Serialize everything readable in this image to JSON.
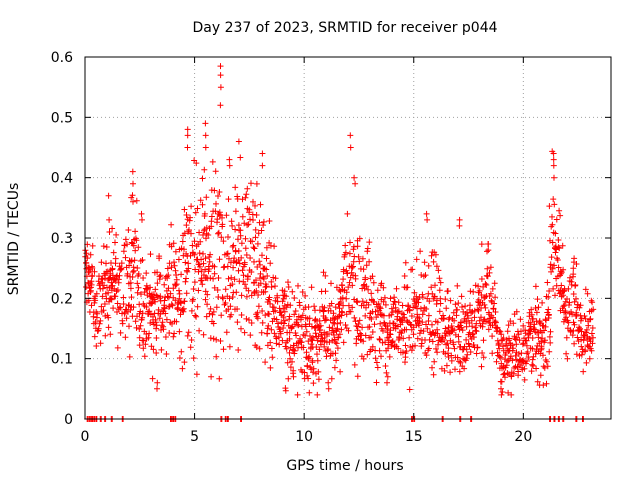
{
  "chart_data": {
    "type": "scatter",
    "title": "Day 237 of 2023, SRMTID for receiver p044",
    "xlabel": "GPS time / hours",
    "ylabel": "SRMTID / TECUs",
    "xlim": [
      0,
      24
    ],
    "ylim": [
      0,
      0.6
    ],
    "xticks": [
      0,
      5,
      10,
      15,
      20
    ],
    "xtick_labels": [
      "0",
      "5",
      "10",
      "15",
      "20"
    ],
    "yticks": [
      0,
      0.1,
      0.2,
      0.3,
      0.4,
      0.5,
      0.6
    ],
    "ytick_labels": [
      "0",
      "0.1",
      "0.2",
      "0.3",
      "0.4",
      "0.5",
      "0.6"
    ],
    "grid": true,
    "marker": "plus",
    "color": "#ff0000",
    "zero_points_x": [
      0.1,
      0.2,
      0.3,
      0.4,
      0.5,
      0.7,
      0.9,
      1.2,
      1.7,
      3.9,
      4.0,
      4.1,
      6.2,
      6.4,
      6.5,
      7.1,
      14.9,
      15.0,
      16.3,
      17.1,
      17.6,
      21.2,
      21.4,
      21.6,
      21.8,
      22.4,
      22.7
    ],
    "curve": {
      "name": "SRMTID",
      "x": [
        0.0,
        0.3,
        0.5,
        0.8,
        1.0,
        1.3,
        1.6,
        2.0,
        2.3,
        2.6,
        3.0,
        3.3,
        3.6,
        4.0,
        4.3,
        4.7,
        5.0,
        5.4,
        5.7,
        6.0,
        6.3,
        6.6,
        7.0,
        7.3,
        7.6,
        8.0,
        8.3,
        8.7,
        9.0,
        9.5,
        10.0,
        10.5,
        11.0,
        11.5,
        12.0,
        12.5,
        13.0,
        13.5,
        14.0,
        14.5,
        15.0,
        15.5,
        16.0,
        16.5,
        17.0,
        17.5,
        18.0,
        18.5,
        19.0,
        19.5,
        20.0,
        20.3,
        20.6,
        21.0,
        21.3,
        21.6,
        22.0,
        22.3,
        22.6,
        23.0
      ],
      "y": [
        0.26,
        0.22,
        0.17,
        0.2,
        0.22,
        0.24,
        0.2,
        0.21,
        0.26,
        0.19,
        0.17,
        0.19,
        0.2,
        0.22,
        0.19,
        0.27,
        0.25,
        0.26,
        0.22,
        0.3,
        0.24,
        0.22,
        0.28,
        0.26,
        0.29,
        0.25,
        0.22,
        0.18,
        0.15,
        0.14,
        0.15,
        0.13,
        0.15,
        0.13,
        0.24,
        0.2,
        0.19,
        0.16,
        0.14,
        0.16,
        0.15,
        0.19,
        0.17,
        0.14,
        0.15,
        0.13,
        0.17,
        0.2,
        0.1,
        0.11,
        0.12,
        0.15,
        0.14,
        0.11,
        0.3,
        0.25,
        0.17,
        0.18,
        0.16,
        0.15
      ],
      "spread": [
        0.05,
        0.05,
        0.04,
        0.06,
        0.06,
        0.07,
        0.07,
        0.08,
        0.1,
        0.07,
        0.06,
        0.06,
        0.06,
        0.07,
        0.07,
        0.11,
        0.11,
        0.12,
        0.1,
        0.12,
        0.11,
        0.09,
        0.11,
        0.1,
        0.09,
        0.1,
        0.09,
        0.07,
        0.06,
        0.06,
        0.06,
        0.06,
        0.06,
        0.06,
        0.09,
        0.08,
        0.08,
        0.06,
        0.05,
        0.06,
        0.06,
        0.07,
        0.07,
        0.05,
        0.06,
        0.05,
        0.07,
        0.07,
        0.04,
        0.04,
        0.05,
        0.05,
        0.05,
        0.05,
        0.1,
        0.08,
        0.06,
        0.06,
        0.05,
        0.05
      ],
      "spikes": [
        {
          "x": 1.1,
          "ys": [
            0.37,
            0.33,
            0.31
          ]
        },
        {
          "x": 2.2,
          "ys": [
            0.41,
            0.39,
            0.36
          ]
        },
        {
          "x": 2.6,
          "ys": [
            0.34,
            0.33
          ]
        },
        {
          "x": 3.3,
          "ys": [
            0.05,
            0.06
          ]
        },
        {
          "x": 4.7,
          "ys": [
            0.48,
            0.47,
            0.45
          ]
        },
        {
          "x": 5.5,
          "ys": [
            0.49,
            0.47,
            0.45
          ]
        },
        {
          "x": 6.2,
          "ys": [
            0.585,
            0.57,
            0.55,
            0.52
          ]
        },
        {
          "x": 6.6,
          "ys": [
            0.43,
            0.42
          ]
        },
        {
          "x": 7.0,
          "ys": [
            0.46
          ]
        },
        {
          "x": 8.1,
          "ys": [
            0.44,
            0.42
          ]
        },
        {
          "x": 9.5,
          "ys": [
            0.08,
            0.07
          ]
        },
        {
          "x": 11.1,
          "ys": [
            0.05,
            0.06
          ]
        },
        {
          "x": 12.1,
          "ys": [
            0.47,
            0.45
          ]
        },
        {
          "x": 12.3,
          "ys": [
            0.4,
            0.39
          ]
        },
        {
          "x": 13.8,
          "ys": [
            0.06,
            0.07
          ]
        },
        {
          "x": 15.6,
          "ys": [
            0.34,
            0.33
          ]
        },
        {
          "x": 17.1,
          "ys": [
            0.33,
            0.32
          ]
        },
        {
          "x": 18.4,
          "ys": [
            0.29,
            0.28
          ]
        },
        {
          "x": 19.0,
          "ys": [
            0.04,
            0.05
          ]
        },
        {
          "x": 21.4,
          "ys": [
            0.44,
            0.43,
            0.42,
            0.4
          ]
        },
        {
          "x": 22.3,
          "ys": [
            0.26,
            0.25
          ]
        }
      ]
    }
  }
}
